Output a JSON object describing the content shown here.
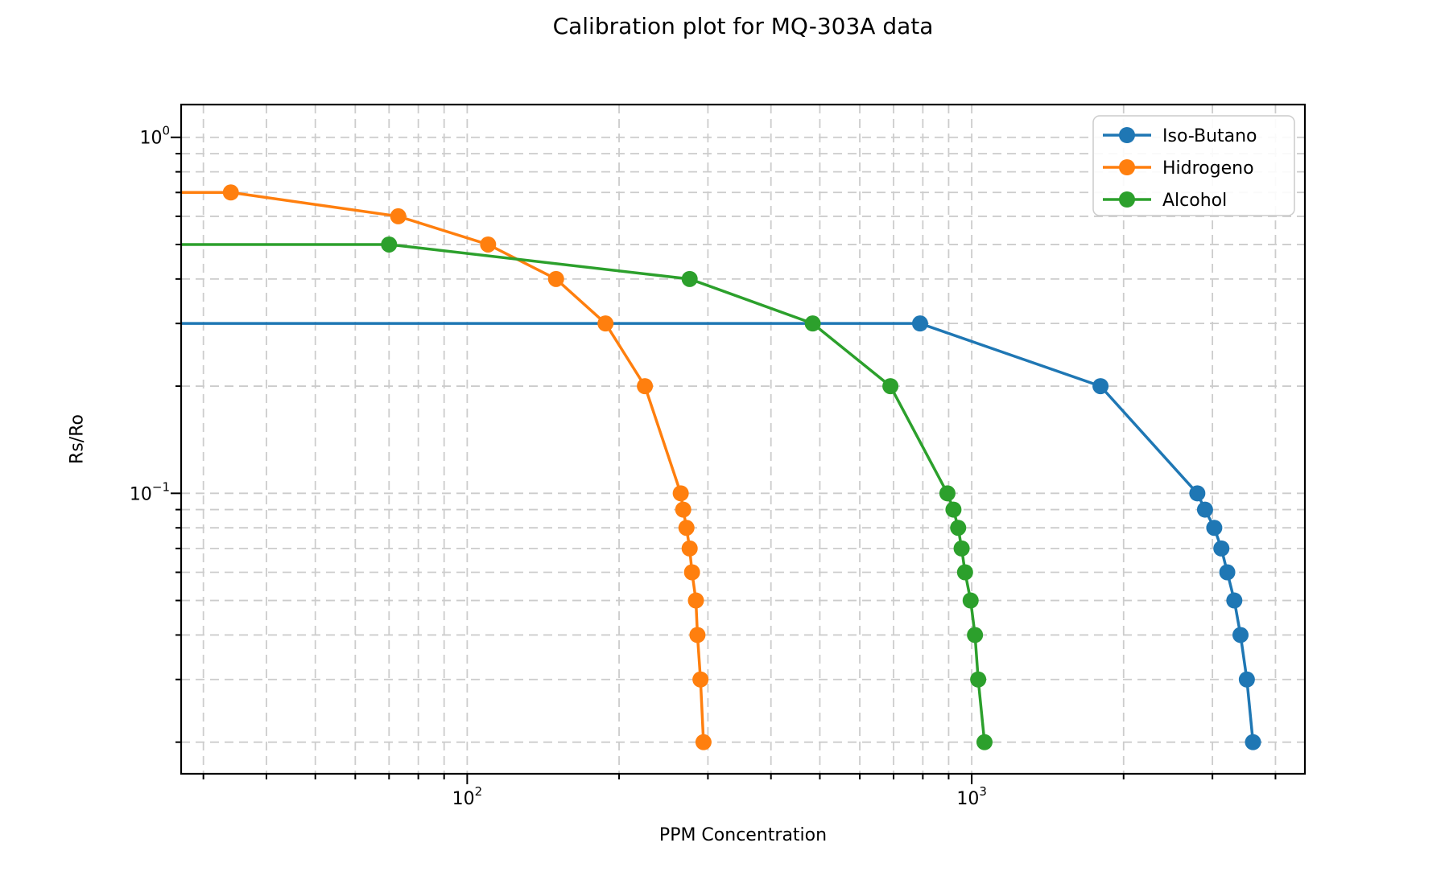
{
  "chart_data": {
    "type": "line",
    "title": "Calibration plot for MQ-303A data",
    "xlabel": "PPM Concentration",
    "ylabel": "Rs/Ro",
    "x_scale": "log",
    "y_scale": "log",
    "xlim": [
      27.1,
      4575
    ],
    "ylim": [
      0.0163,
      1.236
    ],
    "grid": {
      "which": "both",
      "style": "dashed",
      "color": "#cccccc"
    },
    "legend": {
      "position": "upper right",
      "border_color": "#cccccc"
    },
    "x_major_ticks": [
      {
        "value": 100,
        "base": "10",
        "exp": "2"
      },
      {
        "value": 1000,
        "base": "10",
        "exp": "3"
      }
    ],
    "y_major_ticks": [
      {
        "value": 1,
        "base": "10",
        "exp": "0"
      },
      {
        "value": 0.1,
        "base": "10",
        "exp": "−1"
      }
    ],
    "x_minor_ticks": [
      30,
      40,
      50,
      60,
      70,
      80,
      90,
      200,
      300,
      400,
      500,
      600,
      700,
      800,
      900,
      2000,
      3000,
      4000
    ],
    "y_minor_ticks": [
      0.9,
      0.8,
      0.7,
      0.6,
      0.5,
      0.4,
      0.3,
      0.2,
      0.09,
      0.08,
      0.07,
      0.06,
      0.05,
      0.04,
      0.03,
      0.02
    ],
    "series": [
      {
        "name": "Iso-Butano",
        "color": "#1f77b4",
        "marker": "circle",
        "extends_to_left_edge": true,
        "points": [
          [
            790,
            0.3
          ],
          [
            1800,
            0.2
          ],
          [
            2800,
            0.1
          ],
          [
            2900,
            0.09
          ],
          [
            3025,
            0.08
          ],
          [
            3125,
            0.07
          ],
          [
            3210,
            0.06
          ],
          [
            3315,
            0.05
          ],
          [
            3410,
            0.04
          ],
          [
            3510,
            0.03
          ],
          [
            3610,
            0.02
          ]
        ]
      },
      {
        "name": "Hidrogeno",
        "color": "#ff7f0e",
        "marker": "circle",
        "extends_to_left_edge": true,
        "points": [
          [
            34,
            0.7
          ],
          [
            73,
            0.6
          ],
          [
            110,
            0.5
          ],
          [
            150,
            0.4
          ],
          [
            188,
            0.3
          ],
          [
            225,
            0.2
          ],
          [
            265,
            0.1
          ],
          [
            268,
            0.09
          ],
          [
            272,
            0.08
          ],
          [
            276,
            0.07
          ],
          [
            279,
            0.06
          ],
          [
            284,
            0.05
          ],
          [
            286,
            0.04
          ],
          [
            290,
            0.03
          ],
          [
            294,
            0.02
          ]
        ]
      },
      {
        "name": "Alcohol",
        "color": "#2ca02c",
        "marker": "circle",
        "extends_to_left_edge": true,
        "points": [
          [
            70,
            0.5
          ],
          [
            276,
            0.4
          ],
          [
            484,
            0.3
          ],
          [
            690,
            0.2
          ],
          [
            895,
            0.1
          ],
          [
            920,
            0.09
          ],
          [
            940,
            0.08
          ],
          [
            955,
            0.07
          ],
          [
            970,
            0.06
          ],
          [
            995,
            0.05
          ],
          [
            1015,
            0.04
          ],
          [
            1030,
            0.03
          ],
          [
            1060,
            0.02
          ]
        ]
      }
    ]
  }
}
